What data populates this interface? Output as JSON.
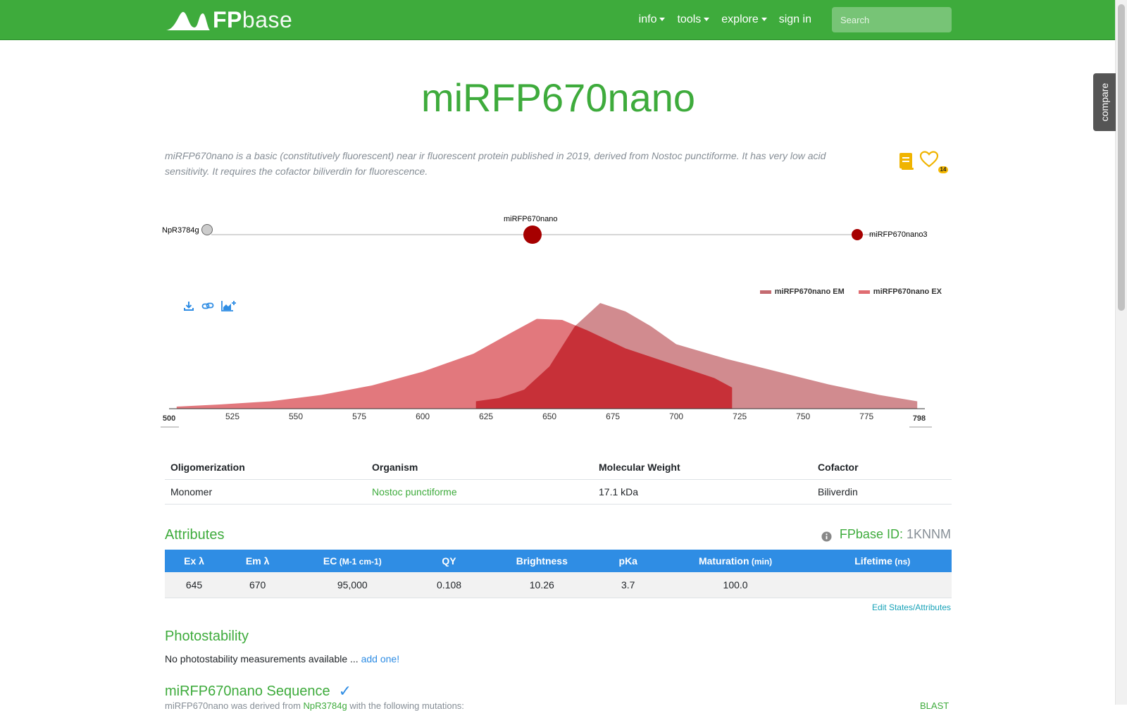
{
  "navbar": {
    "brand_fp": "FP",
    "brand_base": "base",
    "links": [
      "info",
      "tools",
      "explore",
      "sign in"
    ],
    "search_placeholder": "Search"
  },
  "compare_tab": "compare",
  "protein": {
    "name": "miRFP670nano",
    "description": "miRFP670nano is a basic (constitutively fluorescent) near ir fluorescent protein published in 2019, derived from Nostoc punctiforme. It has very low acid sensitivity. It requires the cofactor biliverdin for fluorescence.",
    "favorite_count": "14"
  },
  "lineage": {
    "nodes": [
      {
        "label": "NpR3784g",
        "color": "#cccccc"
      },
      {
        "label": "miRFP670nano",
        "color": "#a60000"
      },
      {
        "label": "miRFP670nano3",
        "color": "#a60000"
      }
    ]
  },
  "legend": [
    {
      "label": "miRFP670nano EM",
      "color": "#c46a70"
    },
    {
      "label": "miRFP670nano EX",
      "color": "#e06d72"
    }
  ],
  "chart_data": {
    "type": "area",
    "xlabel": "",
    "ylabel": "",
    "xlim": [
      500,
      798
    ],
    "ylim": [
      0,
      1
    ],
    "x_ticks": [
      "525",
      "550",
      "575",
      "600",
      "625",
      "650",
      "675",
      "700",
      "725",
      "750",
      "775"
    ],
    "x_min_label": "500",
    "x_max_label": "798",
    "series": [
      {
        "name": "miRFP670nano EX",
        "color": "#e06d72",
        "points": [
          [
            503,
            0.02
          ],
          [
            520,
            0.04
          ],
          [
            540,
            0.07
          ],
          [
            560,
            0.13
          ],
          [
            580,
            0.22
          ],
          [
            600,
            0.35
          ],
          [
            620,
            0.52
          ],
          [
            635,
            0.72
          ],
          [
            645,
            0.85
          ],
          [
            655,
            0.84
          ],
          [
            665,
            0.74
          ],
          [
            680,
            0.57
          ],
          [
            700,
            0.41
          ],
          [
            715,
            0.29
          ],
          [
            722,
            0.2
          ]
        ]
      },
      {
        "name": "miRFP670nano EM",
        "color": "#c46a70",
        "points": [
          [
            621,
            0.07
          ],
          [
            630,
            0.1
          ],
          [
            640,
            0.18
          ],
          [
            650,
            0.4
          ],
          [
            660,
            0.78
          ],
          [
            670,
            1.0
          ],
          [
            680,
            0.92
          ],
          [
            690,
            0.78
          ],
          [
            700,
            0.61
          ],
          [
            720,
            0.47
          ],
          [
            740,
            0.35
          ],
          [
            760,
            0.23
          ],
          [
            780,
            0.13
          ],
          [
            795,
            0.07
          ]
        ]
      }
    ]
  },
  "properties": {
    "headers": [
      "Oligomerization",
      "Organism",
      "Molecular Weight",
      "Cofactor"
    ],
    "values": [
      "Monomer",
      "Nostoc punctiforme",
      "17.1 kDa",
      "Biliverdin"
    ]
  },
  "attributes": {
    "title": "Attributes",
    "fpbase_id_label": "FPbase ID:",
    "fpbase_id": "1KNNM",
    "headers": [
      {
        "label": "Ex λ",
        "unit": ""
      },
      {
        "label": "Em λ",
        "unit": ""
      },
      {
        "label": "EC",
        "unit": "(M-1 cm-1)"
      },
      {
        "label": "QY",
        "unit": ""
      },
      {
        "label": "Brightness",
        "unit": ""
      },
      {
        "label": "pKa",
        "unit": ""
      },
      {
        "label": "Maturation",
        "unit": "(min)"
      },
      {
        "label": "Lifetime",
        "unit": "(ns)"
      }
    ],
    "values": [
      "645",
      "670",
      "95,000",
      "0.108",
      "10.26",
      "3.7",
      "100.0",
      ""
    ],
    "edit_link": "Edit States/Attributes"
  },
  "photostability": {
    "title": "Photostability",
    "text": "No photostability measurements available ...",
    "link": "add one!"
  },
  "sequence": {
    "title": "miRFP670nano Sequence",
    "check": "✓",
    "subtitle_start": "miRFP670nano was derived from",
    "subtitle_link": "NpR3784g",
    "subtitle_end": "with the following mutations:",
    "blast": "BLAST"
  }
}
